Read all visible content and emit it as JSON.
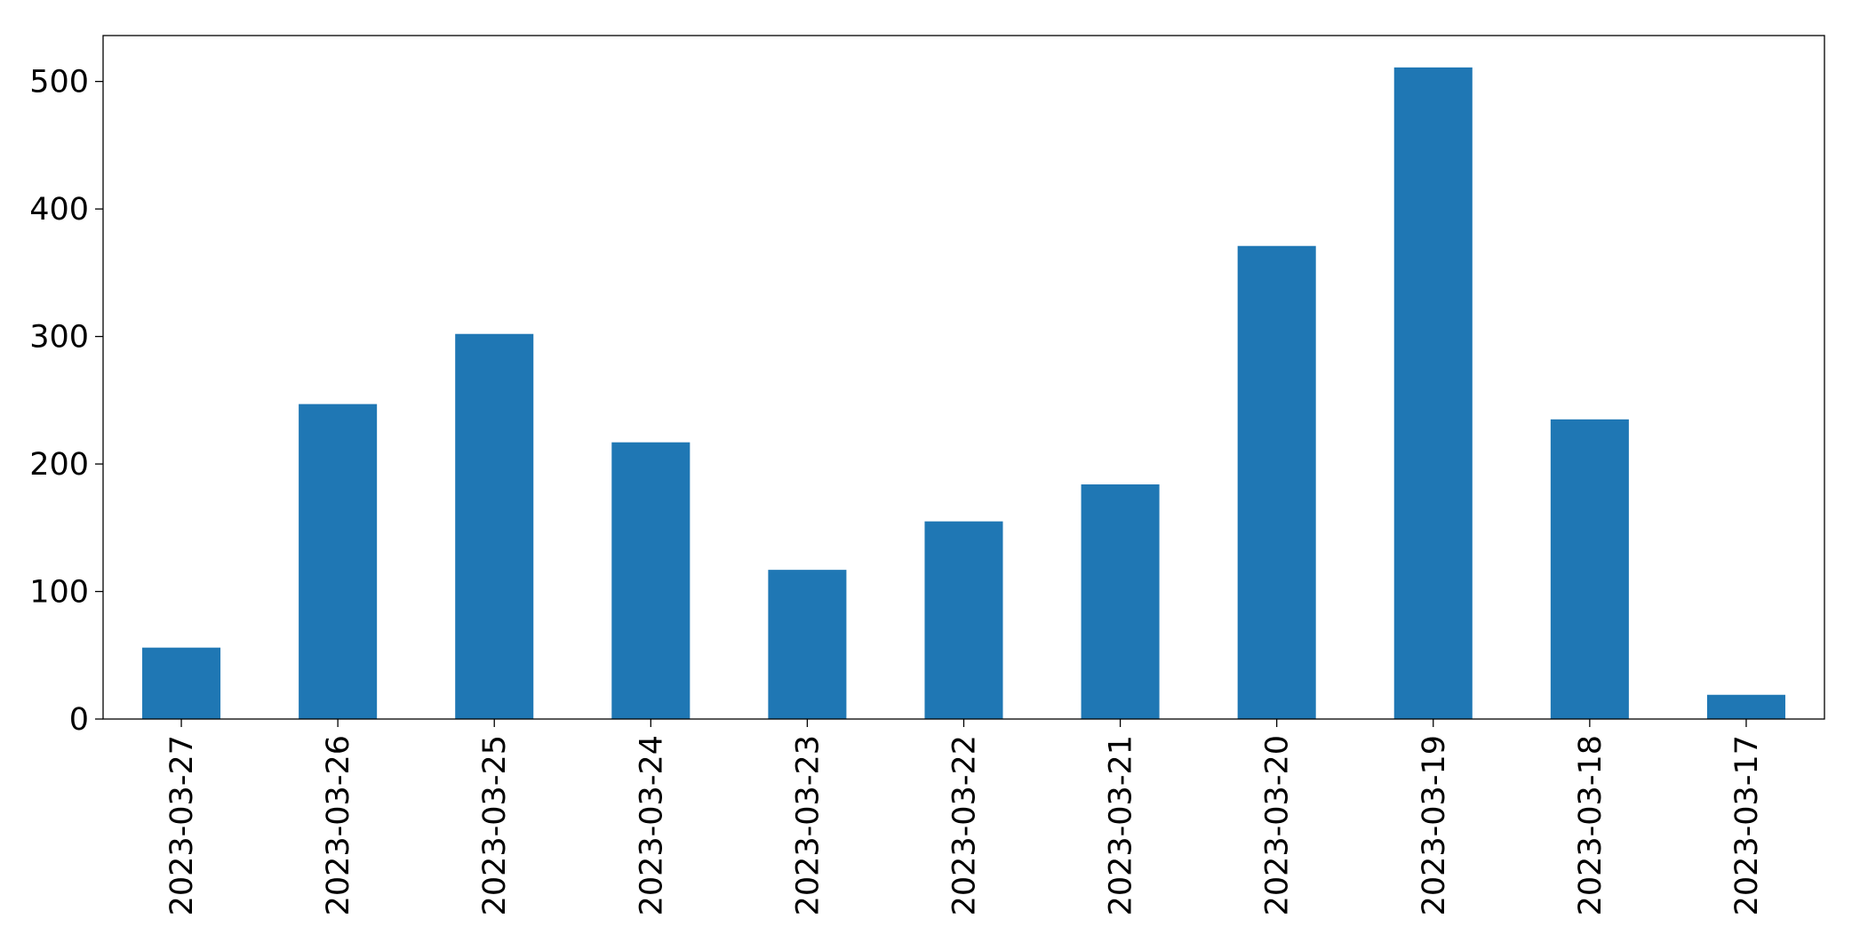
{
  "chart_data": {
    "type": "bar",
    "categories": [
      "2023-03-27",
      "2023-03-26",
      "2023-03-25",
      "2023-03-24",
      "2023-03-23",
      "2023-03-22",
      "2023-03-21",
      "2023-03-20",
      "2023-03-19",
      "2023-03-18",
      "2023-03-17"
    ],
    "values": [
      56,
      247,
      302,
      217,
      117,
      155,
      184,
      371,
      511,
      235,
      19
    ],
    "color": "#1f77b4",
    "ylim": [
      0,
      536
    ],
    "yticks": [
      0,
      100,
      200,
      300,
      400,
      500
    ],
    "grid": false
  }
}
